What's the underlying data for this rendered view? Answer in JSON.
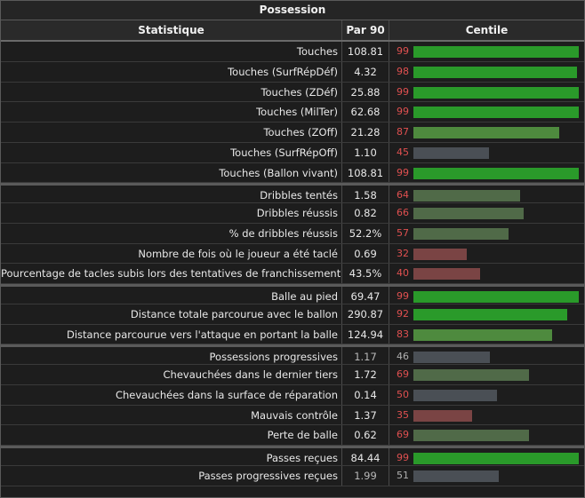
{
  "title": "Possession",
  "headers": {
    "stat": "Statistique",
    "p90": "Par 90",
    "centile": "Centile"
  },
  "colors": {
    "high": "#2a9a2a",
    "midhigh": "#4e8a3e",
    "midlow": "#506a48",
    "neutral": "#4a4f55",
    "low": "#7a4444",
    "num_red": "#e05050",
    "num_gray": "#b0b0b0"
  },
  "groups": [
    {
      "rows": [
        {
          "stat": "Touches",
          "p90": "108.81",
          "pct": 99
        },
        {
          "stat": "Touches (SurfRépDéf)",
          "p90": "4.32",
          "pct": 98
        },
        {
          "stat": "Touches (ZDéf)",
          "p90": "25.88",
          "pct": 99
        },
        {
          "stat": "Touches (MilTer)",
          "p90": "62.68",
          "pct": 99
        },
        {
          "stat": "Touches (ZOff)",
          "p90": "21.28",
          "pct": 87
        },
        {
          "stat": "Touches (SurfRépOff)",
          "p90": "1.10",
          "pct": 45
        },
        {
          "stat": "Touches (Ballon vivant)",
          "p90": "108.81",
          "pct": 99
        }
      ]
    },
    {
      "rows": [
        {
          "stat": "Dribbles tentés",
          "p90": "1.58",
          "pct": 64
        },
        {
          "stat": "Dribbles réussis",
          "p90": "0.82",
          "pct": 66
        },
        {
          "stat": "% de dribbles réussis",
          "p90": "52.2%",
          "pct": 57
        },
        {
          "stat": "Nombre de fois où le joueur a été taclé",
          "p90": "0.69",
          "pct": 32
        },
        {
          "stat": "Pourcentage de tacles subis lors des tentatives de franchissement",
          "p90": "43.5%",
          "pct": 40
        }
      ]
    },
    {
      "rows": [
        {
          "stat": "Balle au pied",
          "p90": "69.47",
          "pct": 99
        },
        {
          "stat": "Distance totale parcourue avec le ballon",
          "p90": "290.87",
          "pct": 92
        },
        {
          "stat": "Distance parcourue vers l'attaque en portant la balle",
          "p90": "124.94",
          "pct": 83
        }
      ]
    },
    {
      "rows": [
        {
          "stat": "Possessions progressives",
          "p90": "1.17",
          "pct": 46,
          "dim": true
        },
        {
          "stat": "Chevauchées dans le dernier tiers",
          "p90": "1.72",
          "pct": 69
        },
        {
          "stat": "Chevauchées dans la surface de réparation",
          "p90": "0.14",
          "pct": 50
        },
        {
          "stat": "Mauvais contrôle",
          "p90": "1.37",
          "pct": 35
        },
        {
          "stat": "Perte de balle",
          "p90": "0.62",
          "pct": 69
        }
      ]
    },
    {
      "rows": [
        {
          "stat": "Passes reçues",
          "p90": "84.44",
          "pct": 99
        },
        {
          "stat": "Passes progressives reçues",
          "p90": "1.99",
          "pct": 51,
          "dim": true
        }
      ]
    }
  ]
}
